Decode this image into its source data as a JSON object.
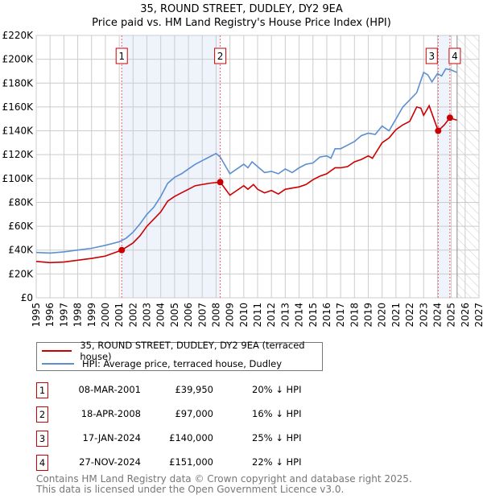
{
  "title_line1": "35, ROUND STREET, DUDLEY, DY2 9EA",
  "title_line2": "Price paid vs. HM Land Registry's House Price Index (HPI)",
  "chart_data": {
    "type": "line",
    "xlim": [
      1995,
      2027
    ],
    "ylim": [
      0,
      220000
    ],
    "x_ticks": [
      1995,
      1996,
      1997,
      1998,
      1999,
      2000,
      2001,
      2002,
      2003,
      2004,
      2005,
      2006,
      2007,
      2008,
      2009,
      2010,
      2011,
      2012,
      2013,
      2014,
      2015,
      2016,
      2017,
      2018,
      2019,
      2020,
      2021,
      2022,
      2023,
      2024,
      2025,
      2026,
      2027
    ],
    "y_ticks": [
      {
        "v": 0,
        "label": "£0"
      },
      {
        "v": 20000,
        "label": "£20K"
      },
      {
        "v": 40000,
        "label": "£40K"
      },
      {
        "v": 60000,
        "label": "£60K"
      },
      {
        "v": 80000,
        "label": "£80K"
      },
      {
        "v": 100000,
        "label": "£100K"
      },
      {
        "v": 120000,
        "label": "£120K"
      },
      {
        "v": 140000,
        "label": "£140K"
      },
      {
        "v": 160000,
        "label": "£160K"
      },
      {
        "v": 180000,
        "label": "£180K"
      },
      {
        "v": 200000,
        "label": "£200K"
      },
      {
        "v": 220000,
        "label": "£220K"
      }
    ],
    "grid": true,
    "series": [
      {
        "name": "35, ROUND STREET, DUDLEY, DY2 9EA (terraced house)",
        "color": "#cc0000",
        "x": [
          1995,
          1996,
          1997,
          1998,
          1999,
          2000,
          2001.18,
          2002,
          2002.5,
          2003,
          2003.5,
          2004,
          2004.5,
          2005,
          2005.5,
          2006,
          2006.5,
          2007,
          2007.5,
          2008.3,
          2009,
          2009.5,
          2010,
          2010.3,
          2010.7,
          2011,
          2011.5,
          2012,
          2012.5,
          2013,
          2013.5,
          2014,
          2014.5,
          2015,
          2015.5,
          2016,
          2016.6,
          2017,
          2017.5,
          2018,
          2018.5,
          2019,
          2019.3,
          2020,
          2020.5,
          2021,
          2021.5,
          2022,
          2022.5,
          2022.8,
          2023,
          2023.4,
          2024.05,
          2024.5,
          2024.9,
          2025.1,
          2025.4
        ],
        "y": [
          30500,
          29500,
          30000,
          31500,
          33000,
          35000,
          39950,
          46000,
          52000,
          60000,
          66000,
          72000,
          81000,
          85000,
          88000,
          91000,
          94000,
          95000,
          96000,
          97000,
          86000,
          90000,
          94000,
          91000,
          95000,
          91000,
          88000,
          90000,
          87000,
          91000,
          92000,
          93000,
          95000,
          99000,
          102000,
          104000,
          109000,
          109000,
          110000,
          114000,
          116000,
          119000,
          117000,
          130000,
          134000,
          141000,
          145000,
          148000,
          160000,
          159000,
          153000,
          161000,
          140000,
          145000,
          151000,
          150000,
          149000
        ]
      },
      {
        "name": "HPI: Average price, terraced house, Dudley",
        "color": "#5b8fd0",
        "x": [
          1995,
          1996,
          1997,
          1998,
          1999,
          2000,
          2001,
          2001.5,
          2002,
          2002.5,
          2003,
          2003.5,
          2004,
          2004.5,
          2005,
          2005.5,
          2006,
          2006.5,
          2007,
          2007.5,
          2008,
          2008.3,
          2009,
          2009.5,
          2010,
          2010.3,
          2010.6,
          2011,
          2011.5,
          2012,
          2012.5,
          2013,
          2013.5,
          2014,
          2014.5,
          2015,
          2015.5,
          2016,
          2016.3,
          2016.6,
          2017,
          2017.5,
          2018,
          2018.5,
          2019,
          2019.5,
          2020,
          2020.5,
          2021,
          2021.5,
          2022,
          2022.5,
          2023,
          2023.3,
          2023.6,
          2024,
          2024.3,
          2024.6,
          2025,
          2025.4
        ],
        "y": [
          38000,
          37500,
          38500,
          40000,
          41500,
          44000,
          47000,
          50000,
          55000,
          62000,
          70000,
          76000,
          85000,
          96000,
          101000,
          104000,
          108000,
          112000,
          115000,
          118000,
          121000,
          118000,
          104000,
          108000,
          112000,
          109000,
          114000,
          110000,
          105000,
          106000,
          104000,
          108000,
          105000,
          109000,
          112000,
          113000,
          118000,
          119000,
          117000,
          125000,
          125000,
          128000,
          131000,
          136000,
          138000,
          137000,
          144000,
          140000,
          150000,
          160000,
          166000,
          172000,
          189000,
          187000,
          181000,
          188000,
          186000,
          192000,
          191000,
          189000
        ]
      }
    ],
    "sales": [
      {
        "n": "1",
        "x": 2001.18,
        "y": 39950,
        "date": "08-MAR-2001",
        "price": "£39,950",
        "hpi": "20% ↓ HPI"
      },
      {
        "n": "2",
        "x": 2008.3,
        "y": 97000,
        "date": "18-APR-2008",
        "price": "£97,000",
        "hpi": "16% ↓ HPI"
      },
      {
        "n": "3",
        "x": 2024.05,
        "y": 140000,
        "date": "17-JAN-2024",
        "price": "£140,000",
        "hpi": "25% ↓ HPI"
      },
      {
        "n": "4",
        "x": 2024.9,
        "y": 151000,
        "date": "27-NOV-2024",
        "price": "£151,000",
        "hpi": "22% ↓ HPI"
      }
    ],
    "shaded_periods": [
      [
        2001.18,
        2008.3
      ],
      [
        2024.05,
        2024.9
      ]
    ],
    "forecast_from": 2025.42
  },
  "footer_line1": "Contains HM Land Registry data © Crown copyright and database right 2025.",
  "footer_line2": "This data is licensed under the Open Government Licence v3.0."
}
